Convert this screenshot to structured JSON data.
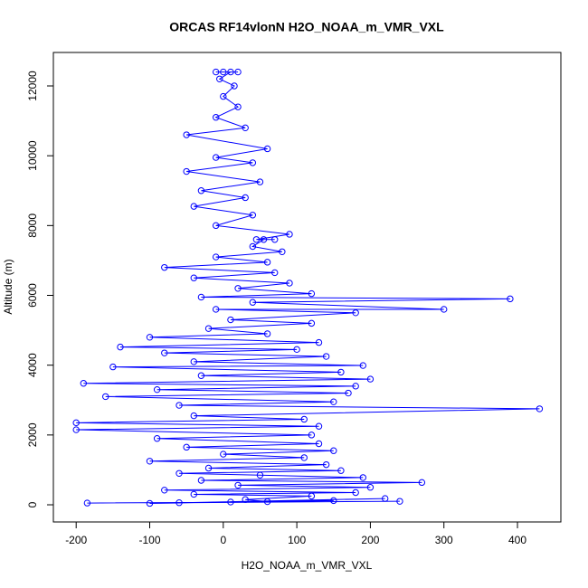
{
  "chart_data": {
    "type": "line",
    "title": "ORCAS RF14vlonN H2O_NOAA_m_VMR_VXL",
    "x_label": "H2O_NOAA_m_VMR_VXL",
    "y_label": "Altitude (m)",
    "color": "#0000ff",
    "markers": true,
    "x": [
      -185,
      240,
      -60,
      150,
      10,
      220,
      -100,
      60,
      30,
      120,
      -40,
      180,
      -80,
      200,
      20,
      270,
      -30,
      190,
      50,
      -60,
      160,
      -20,
      140,
      -100,
      110,
      0,
      150,
      -50,
      130,
      -90,
      120,
      -200,
      130,
      -200,
      110,
      -40,
      430,
      -60,
      150,
      -160,
      170,
      -90,
      180,
      -190,
      200,
      -30,
      160,
      -150,
      190,
      -40,
      140,
      -80,
      100,
      -140,
      130,
      -100,
      60,
      -20,
      120,
      10,
      180,
      -10,
      300,
      40,
      390,
      -30,
      120,
      20,
      90,
      -40,
      70,
      -80,
      60,
      -10,
      80,
      40,
      55,
      70,
      45,
      90,
      -10,
      40,
      -40,
      30,
      -30,
      50,
      -50,
      40,
      -10,
      60,
      -50,
      30,
      -10,
      20,
      0,
      15,
      -5,
      10,
      -10,
      20,
      0
    ],
    "values": [
      50,
      100,
      60,
      120,
      80,
      180,
      40,
      90,
      150,
      250,
      300,
      350,
      420,
      500,
      560,
      640,
      700,
      780,
      850,
      900,
      980,
      1050,
      1150,
      1250,
      1350,
      1450,
      1550,
      1650,
      1750,
      1900,
      2000,
      2150,
      2250,
      2350,
      2450,
      2550,
      2750,
      2850,
      2950,
      3100,
      3200,
      3300,
      3400,
      3480,
      3600,
      3700,
      3800,
      3950,
      3990,
      4100,
      4250,
      4350,
      4450,
      4520,
      4650,
      4800,
      4900,
      5050,
      5200,
      5300,
      5500,
      5600,
      5600,
      5800,
      5900,
      5950,
      6050,
      6200,
      6350,
      6500,
      6650,
      6800,
      6950,
      7100,
      7250,
      7400,
      7600,
      7600,
      7600,
      7750,
      8000,
      8300,
      8550,
      8800,
      9000,
      9250,
      9550,
      9800,
      9950,
      10200,
      10600,
      10800,
      11100,
      11400,
      11700,
      12000,
      12200,
      12400,
      12400,
      12400,
      12400
    ],
    "xlim": [
      -231,
      459
    ],
    "ylim": [
      -492,
      12959
    ],
    "xticks": [
      -200,
      -100,
      0,
      100,
      200,
      300,
      400
    ],
    "yticks": [
      0,
      2000,
      4000,
      6000,
      8000,
      10000,
      12000
    ]
  }
}
